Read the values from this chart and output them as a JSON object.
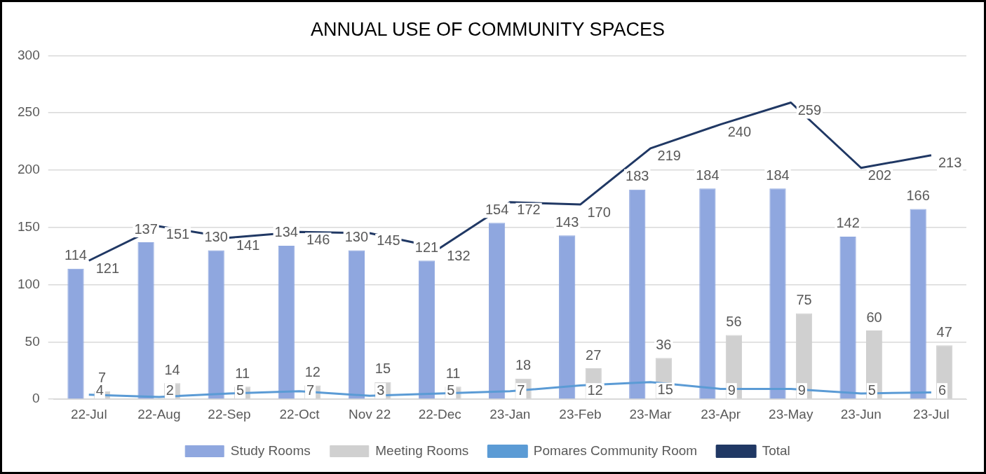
{
  "chart_data": {
    "type": "bar",
    "title": "ANNUAL USE OF COMMUNITY SPACES",
    "categories": [
      "22-Jul",
      "22-Aug",
      "22-Sep",
      "22-Oct",
      "Nov 22",
      "22-Dec",
      "23-Jan",
      "23-Feb",
      "23-Mar",
      "23-Apr",
      "23-May",
      "23-Jun",
      "23-Jul"
    ],
    "series": [
      {
        "name": "Study Rooms",
        "color": "#8fa7df",
        "values": [
          114,
          137,
          130,
          134,
          130,
          121,
          154,
          143,
          183,
          184,
          184,
          142,
          166
        ]
      },
      {
        "name": "Meeting Rooms",
        "color": "#d0d0d0",
        "values": [
          7,
          14,
          11,
          12,
          15,
          11,
          18,
          27,
          36,
          56,
          75,
          60,
          47
        ]
      },
      {
        "name": "Pomares Community Room",
        "type": "line",
        "color": "#5b9bd5",
        "values": [
          4,
          2,
          5,
          7,
          3,
          5,
          7,
          12,
          15,
          9,
          9,
          5,
          6
        ]
      },
      {
        "name": "Total",
        "type": "line",
        "color": "#203864",
        "values": [
          121,
          151,
          141,
          146,
          145,
          132,
          172,
          170,
          219,
          240,
          259,
          202,
          213
        ]
      }
    ],
    "ylim": [
      0,
      300
    ],
    "yticks": [
      0,
      50,
      100,
      150,
      200,
      250,
      300
    ],
    "grid": "y",
    "legend": "bottom",
    "data_labels": true,
    "marker": "none"
  }
}
